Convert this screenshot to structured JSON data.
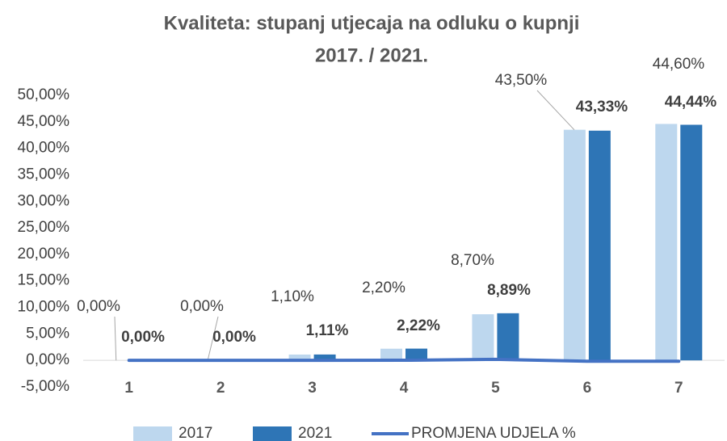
{
  "chart_data": {
    "type": "bar",
    "title": "Kvaliteta: stupanj utjecaja na odluku o kupnji",
    "subtitle": "2017. / 2021.",
    "categories": [
      "1",
      "2",
      "3",
      "4",
      "5",
      "6",
      "7"
    ],
    "series": [
      {
        "name": "2017",
        "type": "bar",
        "color": "#bdd7ee",
        "values": [
          0,
          0,
          1.1,
          2.2,
          8.7,
          43.5,
          44.6
        ],
        "value_labels": [
          "0,00%",
          "0,00%",
          "1,10%",
          "2,20%",
          "8,70%",
          "43,50%",
          "44,60%"
        ]
      },
      {
        "name": "2021",
        "type": "bar",
        "color": "#2e75b6",
        "values": [
          0,
          0,
          1.11,
          2.22,
          8.89,
          43.33,
          44.44
        ],
        "value_labels": [
          "0,00%",
          "0,00%",
          "1,11%",
          "2,22%",
          "8,89%",
          "43,33%",
          "44,44%"
        ]
      },
      {
        "name": "PROMJENA UDJELA %",
        "type": "line",
        "color": "#4472c4",
        "values": [
          0,
          0,
          0.01,
          0.02,
          0.19,
          -0.17,
          -0.16
        ]
      }
    ],
    "ylim": [
      -5,
      50
    ],
    "yticks": [
      {
        "value": -5,
        "label": "-5,00%"
      },
      {
        "value": 0,
        "label": "0,00%"
      },
      {
        "value": 5,
        "label": "5,00%"
      },
      {
        "value": 10,
        "label": "10,00%"
      },
      {
        "value": 15,
        "label": "15,00%"
      },
      {
        "value": 20,
        "label": "20,00%"
      },
      {
        "value": 25,
        "label": "25,00%"
      },
      {
        "value": 30,
        "label": "30,00%"
      },
      {
        "value": 35,
        "label": "35,00%"
      },
      {
        "value": 40,
        "label": "40,00%"
      },
      {
        "value": 45,
        "label": "45,00%"
      },
      {
        "value": 50,
        "label": "50,00%"
      }
    ],
    "grid": false,
    "legend": "bottom"
  }
}
